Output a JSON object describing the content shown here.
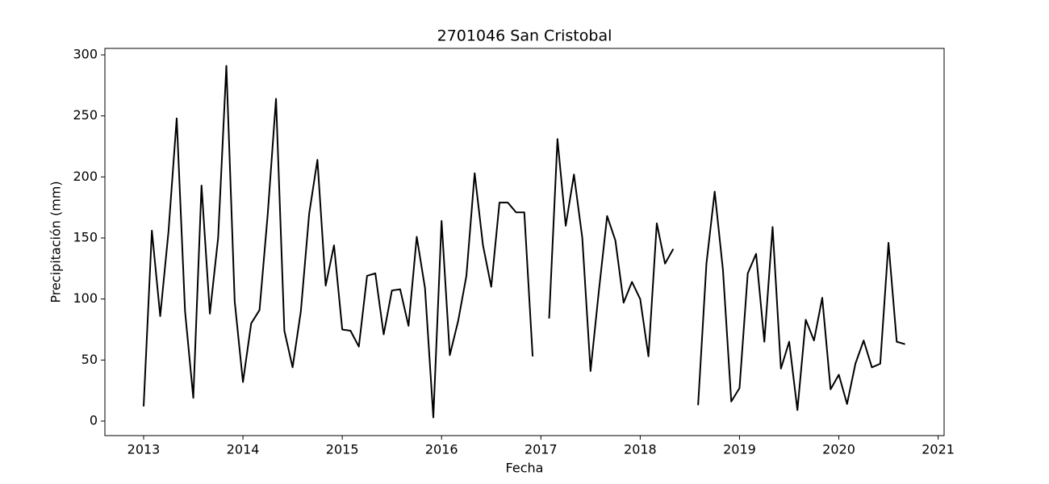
{
  "chart_data": {
    "type": "line",
    "title": "2701046 San Cristobal",
    "x_label": "Fecha",
    "y_label": "Precipitación (mm)",
    "x": [
      2013.0,
      2013.083,
      2013.167,
      2013.25,
      2013.333,
      2013.417,
      2013.5,
      2013.583,
      2013.667,
      2013.75,
      2013.833,
      2013.917,
      2014.0,
      2014.083,
      2014.167,
      2014.25,
      2014.333,
      2014.417,
      2014.5,
      2014.583,
      2014.667,
      2014.75,
      2014.833,
      2014.917,
      2015.0,
      2015.083,
      2015.167,
      2015.25,
      2015.333,
      2015.417,
      2015.5,
      2015.583,
      2015.667,
      2015.75,
      2015.833,
      2015.917,
      2016.0,
      2016.083,
      2016.167,
      2016.25,
      2016.333,
      2016.417,
      2016.5,
      2016.583,
      2016.667,
      2016.75,
      2016.833,
      2016.917,
      2017.0,
      2017.083,
      2017.167,
      2017.25,
      2017.333,
      2017.417,
      2017.5,
      2017.583,
      2017.667,
      2017.75,
      2017.833,
      2017.917,
      2018.0,
      2018.083,
      2018.167,
      2018.25,
      2018.333,
      2018.417,
      2018.5,
      2018.583,
      2018.667,
      2018.75,
      2018.833,
      2018.917,
      2019.0,
      2019.083,
      2019.167,
      2019.25,
      2019.333,
      2019.417,
      2019.5,
      2019.583,
      2019.667,
      2019.75,
      2019.833,
      2019.917,
      2020.0,
      2020.083,
      2020.167,
      2020.25,
      2020.333,
      2020.417,
      2020.5,
      2020.583,
      2020.667
    ],
    "values": [
      12,
      156,
      86,
      155,
      248,
      90,
      19,
      193,
      88,
      150,
      291,
      98,
      32,
      80,
      91,
      170,
      264,
      74,
      44,
      90,
      170,
      214,
      111,
      144,
      75,
      74,
      61,
      119,
      121,
      71,
      107,
      108,
      78,
      151,
      109,
      3,
      164,
      54,
      82,
      119,
      203,
      144,
      110,
      179,
      179,
      171,
      171,
      53,
      null,
      84,
      231,
      160,
      202,
      150,
      41,
      106,
      168,
      148,
      97,
      114,
      100,
      53,
      162,
      129,
      141,
      null,
      null,
      13,
      129,
      188,
      124,
      16,
      27,
      121,
      137,
      65,
      159,
      43,
      65,
      9,
      83,
      66,
      101,
      26,
      38,
      14,
      47,
      66,
      44,
      47,
      146,
      65,
      63
    ],
    "color": "#000000",
    "xlim": [
      2012.61,
      2021.06
    ],
    "xticks": [
      2013,
      2014,
      2015,
      2016,
      2017,
      2018,
      2019,
      2020,
      2021
    ],
    "ylim": [
      -11.9,
      305.3
    ],
    "yticks": [
      0,
      50,
      100,
      150,
      200,
      250,
      300
    ],
    "grid": false
  }
}
